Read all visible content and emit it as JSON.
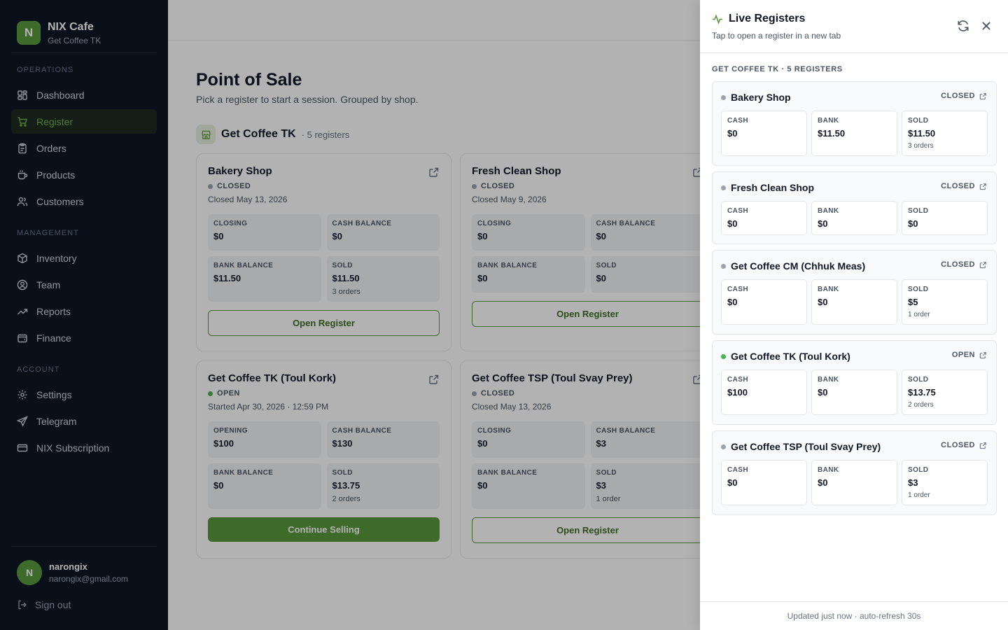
{
  "brand": {
    "name": "NIX Cafe",
    "sub": "Get Coffee TK",
    "logo_letter": "N"
  },
  "sidebar": {
    "sections": [
      {
        "label": "OPERATIONS",
        "items": [
          {
            "label": "Dashboard",
            "icon": "dashboard-icon"
          },
          {
            "label": "Register",
            "icon": "cart-icon",
            "active": true
          },
          {
            "label": "Orders",
            "icon": "clipboard-icon"
          },
          {
            "label": "Products",
            "icon": "coffee-cup-icon"
          },
          {
            "label": "Customers",
            "icon": "users-icon"
          }
        ]
      },
      {
        "label": "MANAGEMENT",
        "items": [
          {
            "label": "Inventory",
            "icon": "box-icon"
          },
          {
            "label": "Team",
            "icon": "user-circle-icon"
          },
          {
            "label": "Reports",
            "icon": "trending-up-icon"
          },
          {
            "label": "Finance",
            "icon": "wallet-icon"
          }
        ]
      },
      {
        "label": "ACCOUNT",
        "items": [
          {
            "label": "Settings",
            "icon": "gear-icon"
          },
          {
            "label": "Telegram",
            "icon": "send-icon"
          },
          {
            "label": "NIX Subscription",
            "icon": "credit-card-icon"
          }
        ]
      }
    ],
    "user": {
      "initial": "N",
      "name": "narongix",
      "email": "narongix@gmail.com"
    },
    "signout_label": "Sign out"
  },
  "main": {
    "title": "Point of Sale",
    "subtitle": "Pick a register to start a session. Grouped by shop.",
    "shop_name": "Get Coffee TK",
    "shop_count": "· 5 registers",
    "cards": [
      {
        "title": "Bakery Shop",
        "status": "CLOSED",
        "open": false,
        "date": "Closed May 13, 2026",
        "stats": [
          {
            "label": "CLOSING",
            "value": "$0"
          },
          {
            "label": "CASH BALANCE",
            "value": "$0"
          },
          {
            "label": "BANK BALANCE",
            "value": "$11.50"
          },
          {
            "label": "SOLD",
            "value": "$11.50",
            "note": "3 orders"
          }
        ],
        "button": "Open Register",
        "primary": false
      },
      {
        "title": "Fresh Clean Shop",
        "status": "CLOSED",
        "open": false,
        "date": "Closed May 9, 2026",
        "stats": [
          {
            "label": "CLOSING",
            "value": "$0"
          },
          {
            "label": "CASH BALANCE",
            "value": "$0"
          },
          {
            "label": "BANK BALANCE",
            "value": "$0"
          },
          {
            "label": "SOLD",
            "value": "$0"
          }
        ],
        "button": "Open Register",
        "primary": false
      },
      {
        "title": "Get Coffee TK (Toul Kork)",
        "status": "OPEN",
        "open": true,
        "date": "Started Apr 30, 2026 · 12:59 PM",
        "stats": [
          {
            "label": "OPENING",
            "value": "$100"
          },
          {
            "label": "CASH BALANCE",
            "value": "$130"
          },
          {
            "label": "BANK BALANCE",
            "value": "$0"
          },
          {
            "label": "SOLD",
            "value": "$13.75",
            "note": "2 orders"
          }
        ],
        "button": "Continue Selling",
        "primary": true
      },
      {
        "title": "Get Coffee TSP (Toul Svay Prey)",
        "status": "CLOSED",
        "open": false,
        "date": "Closed May 13, 2026",
        "stats": [
          {
            "label": "CLOSING",
            "value": "$0"
          },
          {
            "label": "CASH BALANCE",
            "value": "$3"
          },
          {
            "label": "BANK BALANCE",
            "value": "$0"
          },
          {
            "label": "SOLD",
            "value": "$3",
            "note": "1 order"
          }
        ],
        "button": "Open Register",
        "primary": false
      }
    ]
  },
  "panel": {
    "title": "Live Registers",
    "subtitle": "Tap to open a register in a new tab",
    "section": "GET COFFEE TK · 5 REGISTERS",
    "registers": [
      {
        "name": "Bakery Shop",
        "status": "CLOSED",
        "open": false,
        "cash": "$0",
        "bank": "$11.50",
        "sold": "$11.50",
        "sold_note": "3 orders"
      },
      {
        "name": "Fresh Clean Shop",
        "status": "CLOSED",
        "open": false,
        "cash": "$0",
        "bank": "$0",
        "sold": "$0",
        "sold_note": ""
      },
      {
        "name": "Get Coffee CM (Chhuk Meas)",
        "status": "CLOSED",
        "open": false,
        "cash": "$0",
        "bank": "$0",
        "sold": "$5",
        "sold_note": "1 order"
      },
      {
        "name": "Get Coffee TK (Toul Kork)",
        "status": "OPEN",
        "open": true,
        "cash": "$100",
        "bank": "$0",
        "sold": "$13.75",
        "sold_note": "2 orders"
      },
      {
        "name": "Get Coffee TSP (Toul Svay Prey)",
        "status": "CLOSED",
        "open": false,
        "cash": "$0",
        "bank": "$0",
        "sold": "$3",
        "sold_note": "1 order"
      }
    ],
    "labels": {
      "cash": "CASH",
      "bank": "BANK",
      "sold": "SOLD"
    },
    "footer": "Updated just now · auto-refresh 30s"
  },
  "colors": {
    "accent": "#5a9a3c",
    "sidebar_bg": "#0f1724",
    "open_dot": "#4caf50",
    "closed_dot": "#9ca3af"
  }
}
